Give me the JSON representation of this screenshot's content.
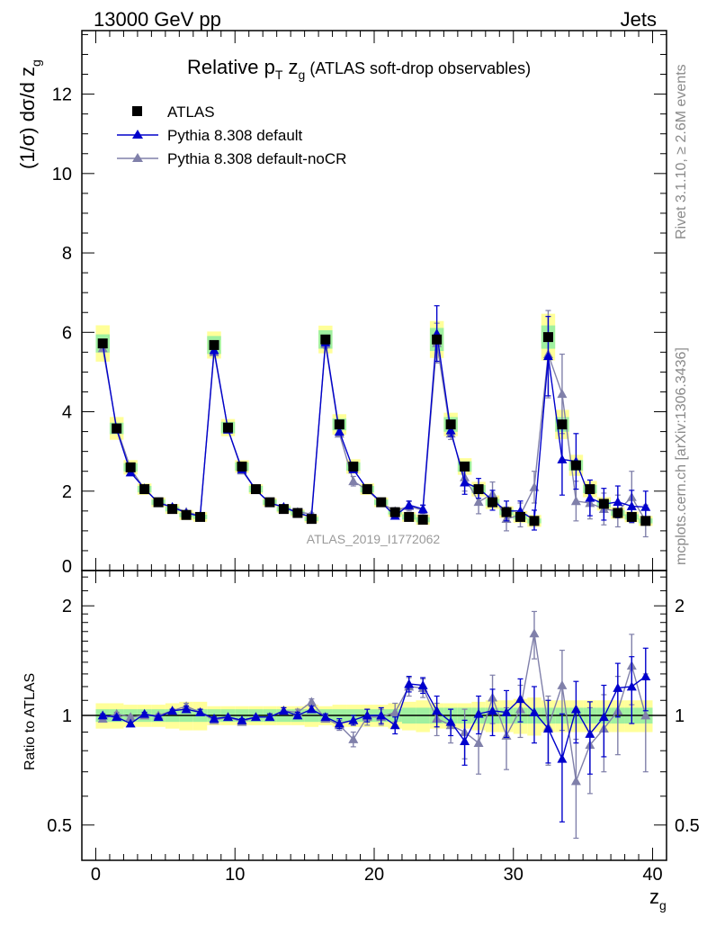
{
  "header": {
    "left": "13000 GeV pp",
    "right": "Jets"
  },
  "side_labels": {
    "rivet": "Rivet 3.1.10, ≥ 2.6M events",
    "mcplots": "mcplots.cern.ch [arXiv:1306.3436]"
  },
  "chart_data": {
    "type": "scatter",
    "title": "Relative p",
    "title_sub": "T",
    "title_mid": " z",
    "title_sub2": "g",
    "title_suffix": " (ATLAS soft-drop observables)",
    "ylabel": "(1/σ) dσ/d z",
    "ylabel_sub": "g",
    "xlabel": "z",
    "xlabel_sub": "g",
    "ratio_ylabel": "Ratio to ATLAS",
    "watermark": "ATLAS_2019_I1772062",
    "xlim": [
      -1,
      41
    ],
    "ylim": [
      0,
      13.6
    ],
    "ratio_ylim": [
      0.4,
      2.5
    ],
    "ratio_log": true,
    "x_ticks": [
      "0",
      "10",
      "20",
      "30",
      "40"
    ],
    "y_ticks": [
      "0",
      "2",
      "4",
      "6",
      "8",
      "10",
      "12"
    ],
    "ratio_ticks": [
      "0.5",
      "1",
      "2"
    ],
    "legend_position": "top-left",
    "colors": {
      "data": "#000000",
      "default": "#0000cc",
      "noCR": "#8080aa",
      "band_inner": "#a0f0a0",
      "band_outer": "#ffff99"
    },
    "x": [
      0.5,
      1.5,
      2.5,
      3.5,
      4.5,
      5.5,
      6.5,
      7.5,
      8.5,
      9.5,
      10.5,
      11.5,
      12.5,
      13.5,
      14.5,
      15.5,
      16.5,
      17.5,
      18.5,
      19.5,
      20.5,
      21.5,
      22.5,
      23.5,
      24.5,
      25.5,
      26.5,
      27.5,
      28.5,
      29.5,
      30.5,
      31.5,
      32.5,
      33.5,
      34.5,
      35.5,
      36.5,
      37.5,
      38.5,
      39.5
    ],
    "series": [
      {
        "name": "ATLAS",
        "values": [
          5.72,
          3.58,
          2.6,
          2.05,
          1.72,
          1.55,
          1.4,
          1.35,
          5.68,
          3.6,
          2.62,
          2.05,
          1.72,
          1.55,
          1.45,
          1.3,
          5.82,
          3.68,
          2.62,
          2.05,
          1.72,
          1.47,
          1.35,
          1.28,
          5.82,
          3.68,
          2.62,
          2.05,
          1.72,
          1.47,
          1.35,
          1.25,
          5.88,
          3.68,
          2.65,
          2.05,
          1.68,
          1.45,
          1.35,
          1.25
        ],
        "rel_unc_inner": [
          0.04,
          0.04,
          0.04,
          0.04,
          0.04,
          0.04,
          0.04,
          0.04,
          0.04,
          0.04,
          0.04,
          0.04,
          0.04,
          0.04,
          0.04,
          0.04,
          0.04,
          0.04,
          0.04,
          0.04,
          0.04,
          0.04,
          0.05,
          0.05,
          0.05,
          0.05,
          0.05,
          0.05,
          0.05,
          0.05,
          0.05,
          0.05,
          0.05,
          0.05,
          0.05,
          0.05,
          0.05,
          0.05,
          0.05,
          0.05
        ],
        "rel_unc_outer": [
          0.08,
          0.08,
          0.07,
          0.07,
          0.07,
          0.08,
          0.09,
          0.09,
          0.06,
          0.06,
          0.06,
          0.06,
          0.06,
          0.06,
          0.06,
          0.07,
          0.06,
          0.07,
          0.07,
          0.07,
          0.07,
          0.08,
          0.09,
          0.1,
          0.08,
          0.08,
          0.08,
          0.09,
          0.1,
          0.1,
          0.11,
          0.12,
          0.1,
          0.1,
          0.1,
          0.1,
          0.1,
          0.1,
          0.1,
          0.1
        ]
      },
      {
        "name": "Pythia 8.308 default",
        "values": [
          5.7,
          3.55,
          2.47,
          2.07,
          1.7,
          1.6,
          1.45,
          1.37,
          5.55,
          3.55,
          2.55,
          2.03,
          1.7,
          1.6,
          1.45,
          1.35,
          5.75,
          3.5,
          2.55,
          2.05,
          1.72,
          1.38,
          1.65,
          1.55,
          5.97,
          3.53,
          2.22,
          2.07,
          1.77,
          1.5,
          1.5,
          1.27,
          5.4,
          2.8,
          2.75,
          1.83,
          1.67,
          1.73,
          1.62,
          1.6
        ],
        "errors": [
          0.04,
          0.03,
          0.03,
          0.03,
          0.03,
          0.03,
          0.03,
          0.03,
          0.05,
          0.04,
          0.04,
          0.03,
          0.03,
          0.03,
          0.03,
          0.03,
          0.08,
          0.07,
          0.07,
          0.06,
          0.06,
          0.06,
          0.1,
          0.1,
          0.7,
          0.15,
          0.3,
          0.25,
          0.25,
          0.25,
          0.25,
          0.25,
          1.0,
          0.9,
          0.7,
          0.45,
          0.4,
          0.4,
          0.4,
          0.4
        ]
      },
      {
        "name": "Pythia 8.308 default-noCR",
        "values": [
          5.6,
          3.6,
          2.57,
          2.05,
          1.72,
          1.6,
          1.48,
          1.38,
          5.5,
          3.55,
          2.52,
          2.03,
          1.7,
          1.6,
          1.48,
          1.42,
          5.7,
          3.45,
          2.25,
          2.03,
          1.7,
          1.5,
          1.62,
          1.52,
          5.73,
          3.45,
          2.35,
          1.73,
          1.93,
          1.3,
          1.4,
          2.1,
          5.45,
          4.45,
          1.75,
          1.7,
          1.55,
          1.5,
          1.85,
          1.25
        ],
        "errors": [
          0.04,
          0.03,
          0.03,
          0.03,
          0.03,
          0.03,
          0.03,
          0.03,
          0.05,
          0.04,
          0.04,
          0.03,
          0.03,
          0.03,
          0.03,
          0.03,
          0.1,
          0.08,
          0.12,
          0.08,
          0.08,
          0.08,
          0.12,
          0.12,
          0.5,
          0.15,
          0.35,
          0.3,
          0.3,
          0.3,
          0.3,
          0.4,
          1.1,
          1.0,
          0.5,
          0.4,
          0.4,
          0.4,
          0.65,
          0.4
        ]
      }
    ],
    "ratios": {
      "Pythia 8.308 default": [
        1.0,
        0.99,
        0.95,
        1.01,
        0.99,
        1.03,
        1.04,
        1.02,
        0.98,
        0.99,
        0.97,
        0.99,
        0.99,
        1.03,
        1.0,
        1.04,
        0.99,
        0.95,
        0.97,
        1.0,
        1.0,
        0.94,
        1.22,
        1.21,
        1.03,
        0.96,
        0.85,
        1.01,
        1.03,
        1.02,
        1.11,
        1.02,
        0.92,
        0.76,
        1.04,
        0.89,
        0.99,
        1.19,
        1.2,
        1.28
      ],
      "Pythia 8.308 default-noCR": [
        0.98,
        1.01,
        0.99,
        1.0,
        1.0,
        1.03,
        1.06,
        1.02,
        0.97,
        0.99,
        0.96,
        0.99,
        0.99,
        1.03,
        1.02,
        1.09,
        0.98,
        0.94,
        0.86,
        0.99,
        0.99,
        1.02,
        1.2,
        1.19,
        0.98,
        0.94,
        0.9,
        0.84,
        1.12,
        0.88,
        1.04,
        1.68,
        0.93,
        1.21,
        0.66,
        0.83,
        0.92,
        1.03,
        1.37,
        1.0
      ]
    },
    "ratio_errors": {
      "Pythia 8.308 default": [
        0.01,
        0.01,
        0.01,
        0.01,
        0.01,
        0.01,
        0.02,
        0.02,
        0.01,
        0.01,
        0.01,
        0.01,
        0.02,
        0.02,
        0.02,
        0.02,
        0.02,
        0.03,
        0.03,
        0.04,
        0.05,
        0.05,
        0.06,
        0.06,
        0.1,
        0.08,
        0.12,
        0.12,
        0.15,
        0.15,
        0.15,
        0.18,
        0.18,
        0.25,
        0.2,
        0.2,
        0.22,
        0.2,
        0.25,
        0.25
      ],
      "Pythia 8.308 default-noCR": [
        0.01,
        0.01,
        0.01,
        0.01,
        0.01,
        0.01,
        0.02,
        0.02,
        0.01,
        0.01,
        0.01,
        0.01,
        0.02,
        0.02,
        0.02,
        0.02,
        0.02,
        0.03,
        0.04,
        0.05,
        0.05,
        0.06,
        0.07,
        0.07,
        0.1,
        0.1,
        0.14,
        0.15,
        0.17,
        0.17,
        0.17,
        0.25,
        0.2,
        0.3,
        0.2,
        0.22,
        0.22,
        0.25,
        0.3,
        0.3
      ]
    }
  }
}
